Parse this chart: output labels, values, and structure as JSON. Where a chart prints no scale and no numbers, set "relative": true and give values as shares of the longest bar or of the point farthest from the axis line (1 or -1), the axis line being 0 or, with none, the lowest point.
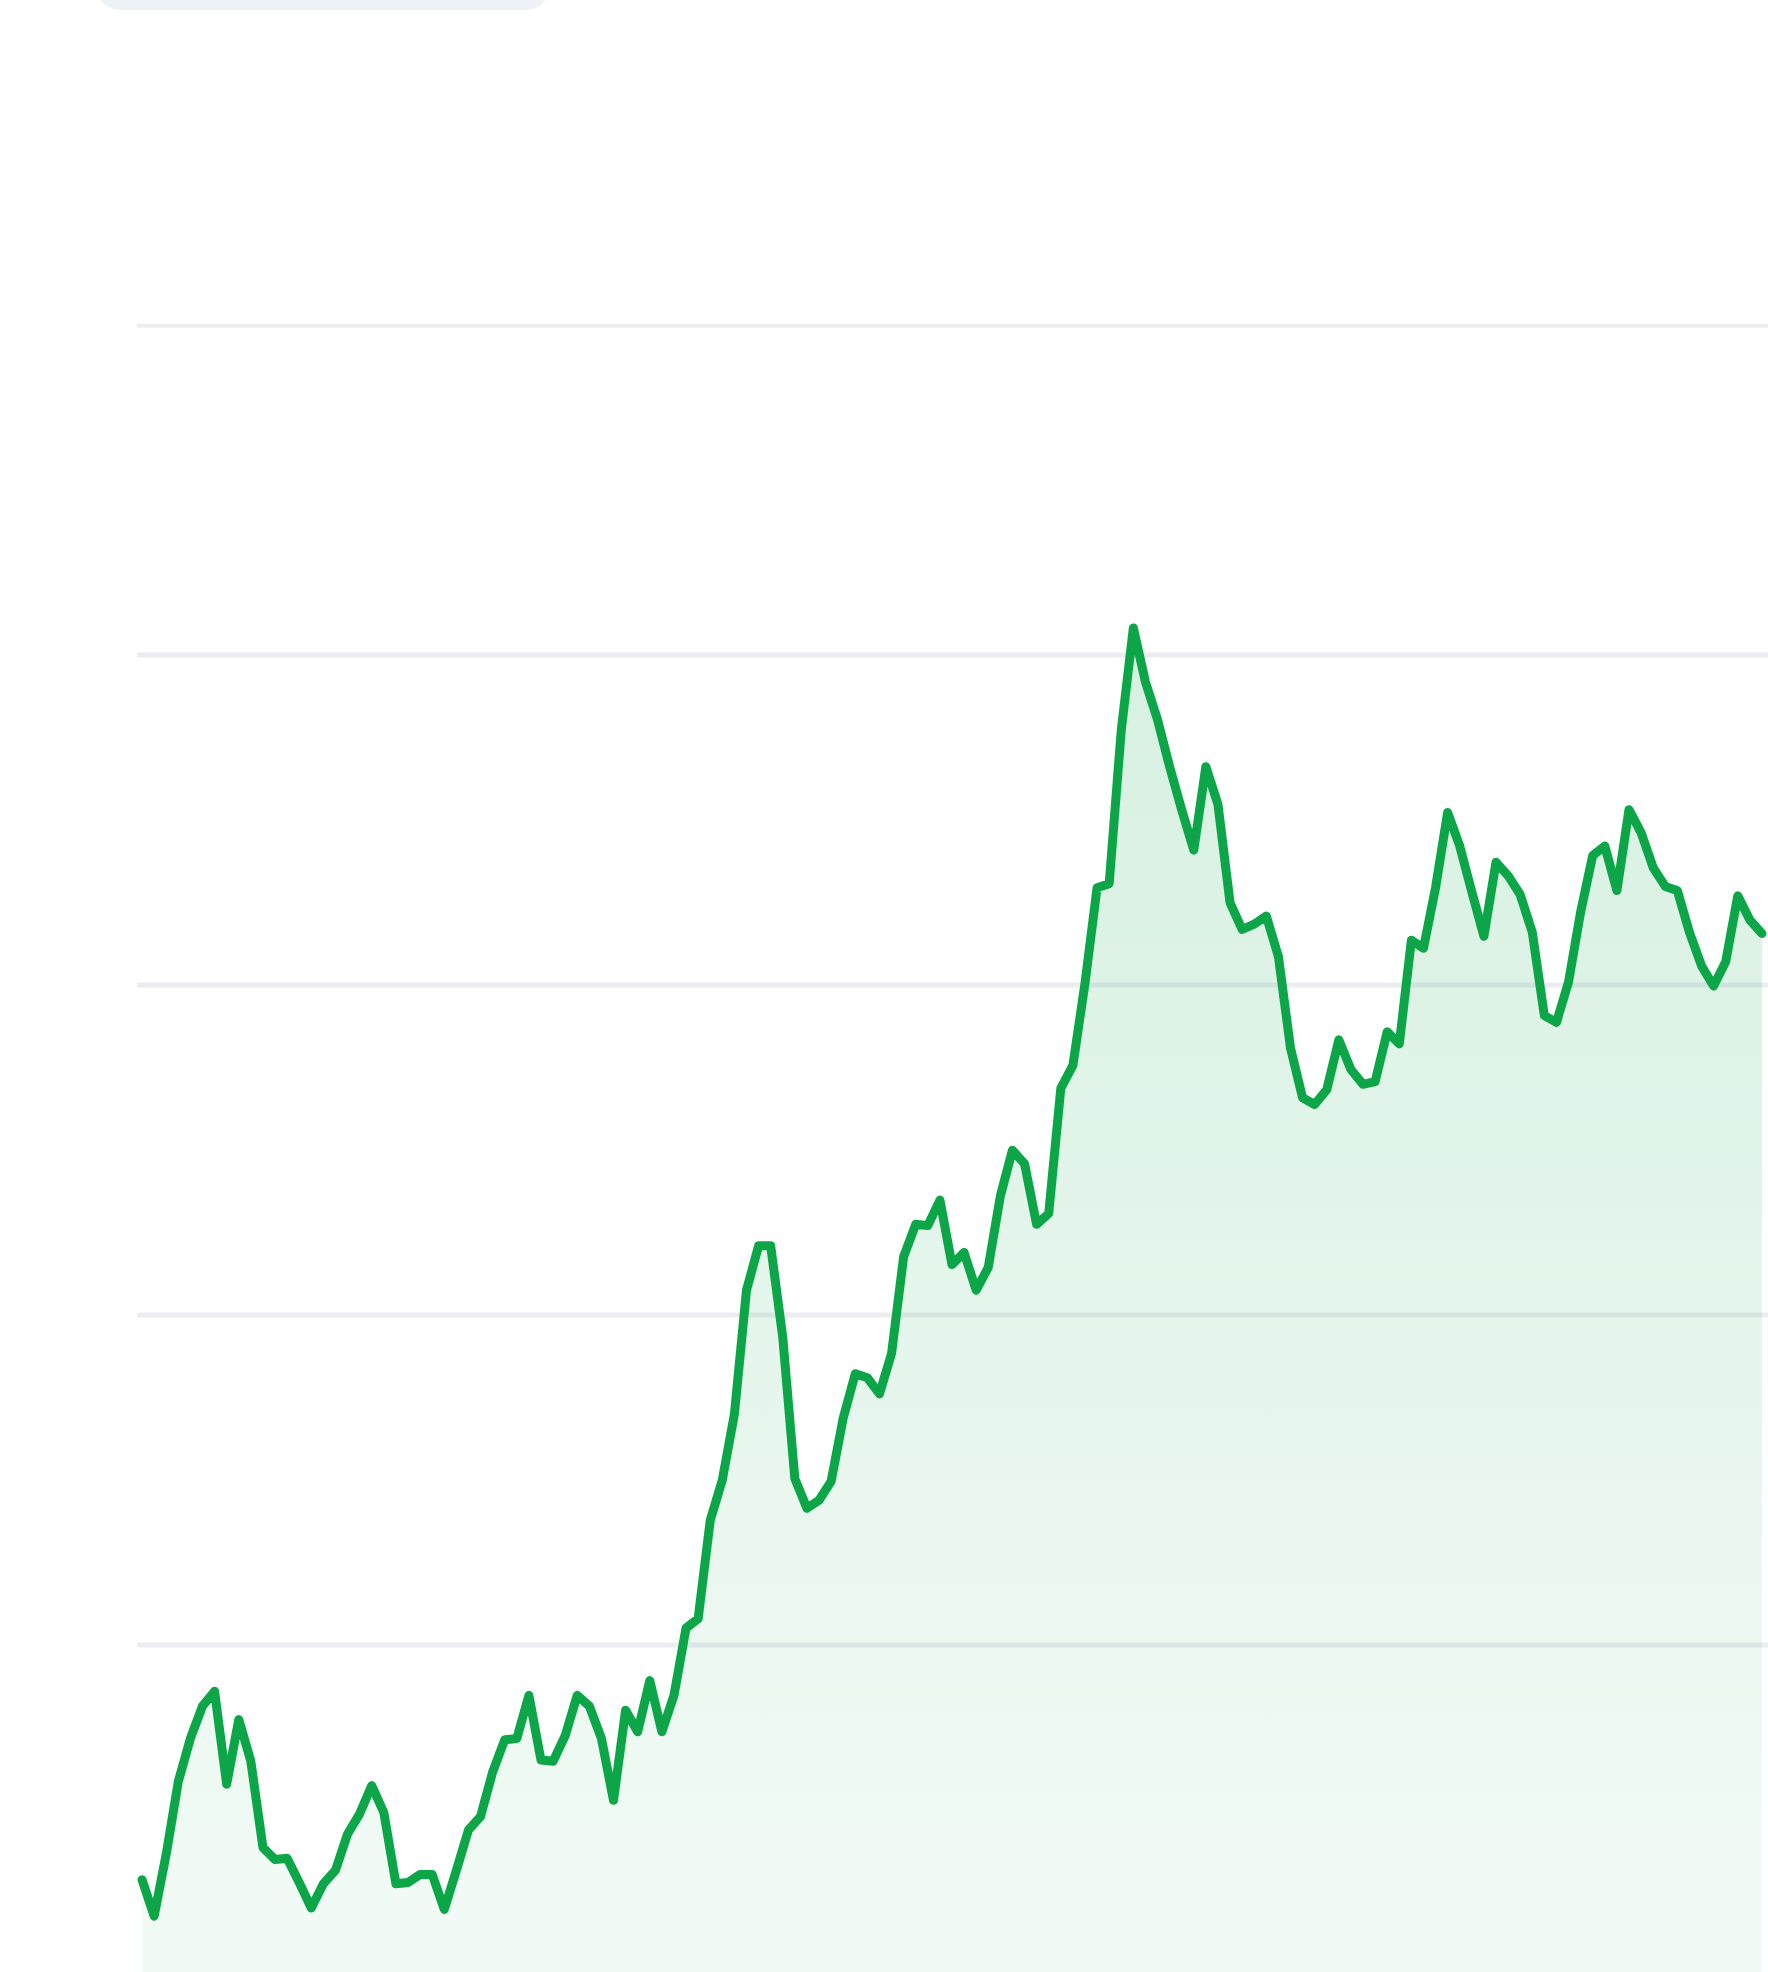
{
  "chart_data": {
    "type": "area",
    "relative": true,
    "grid": "y",
    "categories": [
      null,
      null,
      null,
      null,
      null,
      null,
      null,
      null,
      null,
      null,
      null,
      null,
      null,
      null,
      null,
      null,
      null,
      null,
      null,
      null,
      null,
      null,
      null,
      null,
      null,
      null,
      null,
      null,
      null,
      null,
      null,
      null,
      null,
      null,
      null,
      null,
      null,
      null,
      null,
      null,
      null,
      null,
      null,
      null,
      null,
      null,
      null,
      null,
      null,
      null,
      null,
      null,
      null,
      null,
      null,
      null,
      null,
      null,
      null,
      null,
      null,
      null,
      null,
      null,
      null,
      null,
      null,
      null,
      null,
      null,
      null,
      null,
      null,
      null,
      null,
      null,
      null,
      null,
      null,
      null,
      null,
      null,
      null,
      null,
      null,
      null,
      null,
      null,
      null,
      null,
      null,
      null,
      null,
      null,
      null,
      null,
      null,
      null,
      null,
      null,
      null,
      null,
      null,
      null,
      null,
      null,
      null,
      null,
      null,
      null,
      null,
      null,
      null,
      null,
      null,
      null,
      null,
      null,
      null,
      null,
      null,
      null,
      null,
      null,
      null,
      null,
      null,
      null,
      null,
      null,
      null,
      null,
      null,
      null,
      null
    ],
    "series": [
      {
        "color": "#0ca648",
        "values": [
          0.07,
          0.043,
          0.089,
          0.143,
          0.175,
          0.199,
          0.21,
          0.141,
          0.189,
          0.158,
          0.094,
          0.085,
          0.086,
          0.068,
          0.049,
          0.067,
          0.077,
          0.104,
          0.119,
          0.14,
          0.12,
          0.067,
          0.068,
          0.074,
          0.074,
          0.048,
          0.077,
          0.107,
          0.117,
          0.15,
          0.174,
          0.175,
          0.207,
          0.159,
          0.158,
          0.177,
          0.207,
          0.199,
          0.175,
          0.129,
          0.196,
          0.18,
          0.218,
          0.18,
          0.207,
          0.257,
          0.264,
          0.337,
          0.367,
          0.416,
          0.508,
          0.541,
          0.541,
          0.473,
          0.368,
          0.346,
          0.352,
          0.366,
          0.413,
          0.446,
          0.443,
          0.431,
          0.461,
          0.533,
          0.557,
          0.556,
          0.575,
          0.527,
          0.536,
          0.508,
          0.525,
          0.578,
          0.612,
          0.602,
          0.557,
          0.565,
          0.658,
          0.675,
          0.736,
          0.807,
          0.81,
          0.924,
          1,
          0.96,
          0.932,
          0.897,
          0.865,
          0.835,
          0.897,
          0.869,
          0.796,
          0.776,
          0.78,
          0.786,
          0.756,
          0.688,
          0.651,
          0.646,
          0.657,
          0.694,
          0.672,
          0.661,
          0.663,
          0.7,
          0.691,
          0.768,
          0.762,
          0.807,
          0.863,
          0.838,
          0.804,
          0.771,
          0.826,
          0.816,
          0.802,
          0.774,
          0.712,
          0.707,
          0.737,
          0.789,
          0.831,
          0.838,
          0.805,
          0.865,
          0.848,
          0.822,
          0.808,
          0.805,
          0.774,
          0.749,
          0.734,
          0.752,
          0.801,
          0.783,
          0.773
        ]
      }
    ]
  }
}
